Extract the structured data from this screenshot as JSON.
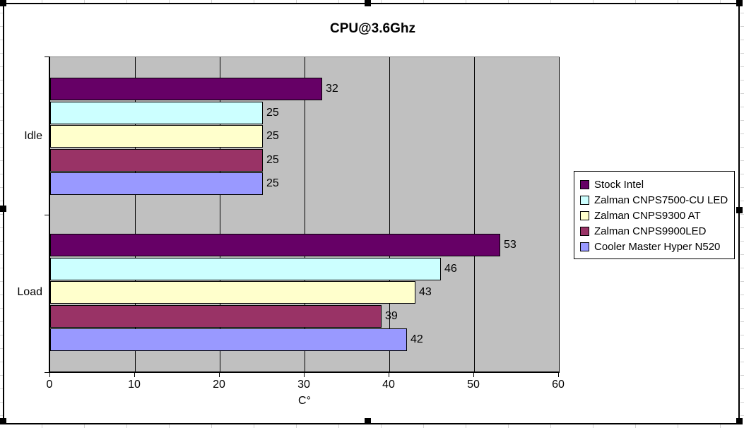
{
  "chart": {
    "title": "CPU@3.6Ghz",
    "xlabel": "C°",
    "plot_background": "#c0c0c0",
    "chart_background": "#ffffff",
    "border_color": "#000000",
    "selection_handles": [
      "nw",
      "n",
      "ne",
      "w",
      "e",
      "sw",
      "s",
      "se"
    ]
  },
  "chart_data": {
    "type": "bar",
    "orientation": "horizontal",
    "title": "CPU@3.6Ghz",
    "xlabel": "C°",
    "categories": [
      "Idle",
      "Load"
    ],
    "series": [
      {
        "name": "Stock Intel",
        "color": "#660066",
        "values": [
          32,
          53
        ]
      },
      {
        "name": "Zalman CNPS7500-CU LED",
        "color": "#ccffff",
        "values": [
          25,
          46
        ]
      },
      {
        "name": "Zalman CNPS9300 AT",
        "color": "#ffffcc",
        "values": [
          25,
          43
        ]
      },
      {
        "name": "Zalman CNPS9900LED",
        "color": "#993366",
        "values": [
          25,
          39
        ]
      },
      {
        "name": "Cooler Master Hyper N520",
        "color": "#9999ff",
        "values": [
          25,
          42
        ]
      }
    ],
    "xlim": [
      0,
      60
    ],
    "xticks": [
      0,
      10,
      20,
      30,
      40,
      50,
      60
    ],
    "grid": true,
    "data_labels": true,
    "legend_position": "right"
  }
}
